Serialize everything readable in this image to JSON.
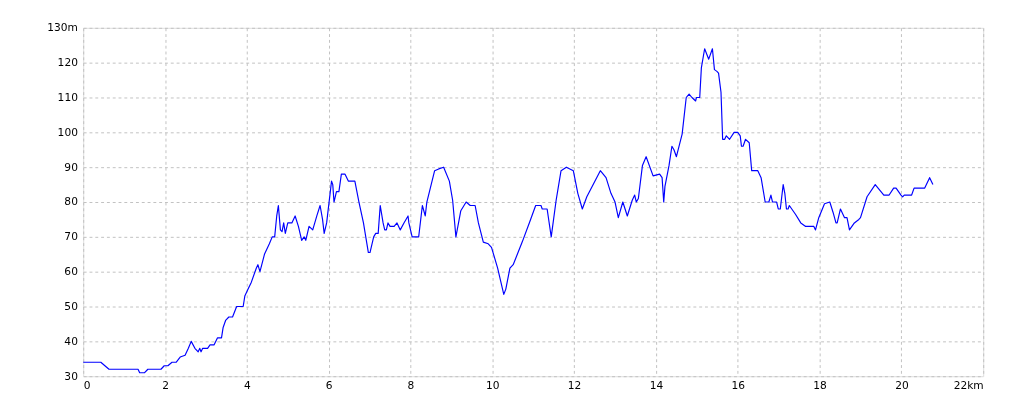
{
  "chart_data": {
    "type": "line",
    "x": [
      0,
      0.43,
      0.63,
      1.34,
      1.38,
      1.5,
      1.58,
      1.9,
      1.98,
      2.07,
      2.17,
      2.27,
      2.37,
      2.49,
      2.57,
      2.64,
      2.73,
      2.81,
      2.85,
      2.88,
      2.92,
      3.04,
      3.1,
      3.2,
      3.28,
      3.38,
      3.42,
      3.48,
      3.56,
      3.65,
      3.75,
      3.91,
      3.95,
      4.03,
      4.11,
      4.23,
      4.27,
      4.32,
      4.43,
      4.55,
      4.62,
      4.68,
      4.73,
      4.77,
      4.82,
      4.86,
      4.9,
      4.94,
      5.0,
      5.1,
      5.18,
      5.26,
      5.34,
      5.4,
      5.44,
      5.52,
      5.61,
      5.71,
      5.79,
      5.85,
      5.89,
      5.95,
      6.05,
      6.07,
      6.1,
      6.13,
      6.19,
      6.25,
      6.31,
      6.4,
      6.48,
      6.64,
      6.74,
      6.85,
      6.97,
      7.01,
      7.1,
      7.15,
      7.21,
      7.26,
      7.33,
      7.37,
      7.41,
      7.45,
      7.5,
      7.6,
      7.67,
      7.75,
      7.84,
      7.94,
      7.96,
      8.04,
      8.2,
      8.26,
      8.29,
      8.36,
      8.4,
      8.59,
      8.69,
      8.81,
      8.95,
      9.03,
      9.11,
      9.23,
      9.36,
      9.46,
      9.58,
      9.66,
      9.78,
      9.9,
      9.98,
      10.13,
      10.21,
      10.28,
      10.33,
      10.43,
      10.51,
      10.73,
      10.92,
      11.06,
      11.19,
      11.22,
      11.34,
      11.44,
      11.56,
      11.68,
      11.81,
      11.98,
      12.09,
      12.2,
      12.31,
      12.64,
      12.78,
      12.9,
      13.0,
      13.08,
      13.19,
      13.3,
      13.42,
      13.48,
      13.52,
      13.57,
      13.67,
      13.76,
      13.93,
      14.09,
      14.15,
      14.19,
      14.22,
      14.32,
      14.39,
      14.44,
      14.5,
      14.64,
      14.74,
      14.81,
      14.88,
      14.97,
      14.99,
      15.07,
      15.11,
      15.19,
      15.29,
      15.38,
      15.43,
      15.49,
      15.53,
      15.59,
      15.63,
      15.68,
      15.72,
      15.8,
      15.91,
      16.0,
      16.06,
      16.09,
      16.13,
      16.19,
      16.28,
      16.34,
      16.49,
      16.57,
      16.67,
      16.76,
      16.81,
      16.85,
      16.95,
      16.99,
      17.04,
      17.11,
      17.15,
      17.19,
      17.23,
      17.26,
      17.41,
      17.54,
      17.66,
      17.86,
      17.9,
      17.98,
      18.12,
      18.25,
      18.33,
      18.4,
      18.43,
      18.51,
      18.61,
      18.67,
      18.73,
      18.85,
      18.96,
      19.0,
      19.16,
      19.36,
      19.57,
      19.7,
      19.81,
      19.87,
      19.99,
      20.03,
      20.07,
      20.15,
      20.25,
      20.31,
      20.57,
      20.69,
      20.77
    ],
    "series": [
      {
        "color": "#0000ff",
        "values": [
          34,
          34,
          32,
          32,
          31,
          31,
          32,
          32,
          33,
          33,
          34,
          34,
          35.5,
          36,
          38,
          40,
          38,
          37,
          38,
          37,
          38,
          38,
          39,
          39,
          41,
          41,
          44,
          46,
          47,
          47,
          50,
          50,
          53,
          55,
          57,
          61,
          62,
          60,
          65,
          68,
          70,
          70,
          76,
          79,
          72,
          71.5,
          74,
          71,
          74,
          74,
          76,
          73,
          69,
          70,
          69,
          73,
          72,
          76,
          79,
          75,
          71,
          74,
          84,
          86,
          85,
          80,
          83,
          83,
          88,
          88,
          86,
          86,
          80,
          74,
          65.5,
          65.5,
          70,
          71,
          71,
          79,
          74,
          72,
          72,
          74,
          73,
          73,
          74,
          72,
          74,
          76,
          74,
          70,
          70,
          76,
          79,
          76,
          80,
          89,
          89.5,
          90,
          86,
          80.5,
          70,
          77.5,
          80,
          79,
          79,
          74,
          68.5,
          68,
          67,
          61,
          57,
          53.5,
          55,
          61,
          62,
          68.5,
          74.5,
          79,
          79,
          78,
          78,
          70,
          80.5,
          89,
          90,
          89,
          82.5,
          78,
          81.5,
          89,
          87,
          82.5,
          80,
          75.5,
          80,
          76,
          80.5,
          82,
          80,
          81,
          90.5,
          93,
          87.5,
          88,
          87,
          80,
          84.5,
          90.5,
          96,
          95,
          93,
          99.5,
          110,
          111,
          110,
          109,
          110,
          110,
          118.5,
          124,
          121,
          124,
          118,
          117.5,
          117,
          111.5,
          98,
          98,
          99,
          98,
          100,
          100,
          99,
          96,
          96,
          98,
          97,
          89,
          89,
          87,
          80,
          80,
          82,
          80,
          80,
          78,
          78,
          85,
          82.5,
          78,
          78,
          79,
          76.5,
          74,
          73,
          73,
          72,
          75.5,
          79.5,
          80,
          77,
          74,
          74,
          78,
          75.5,
          75.5,
          72,
          74,
          75,
          75.5,
          81.5,
          85,
          82,
          82,
          84,
          84,
          82,
          81.5,
          82,
          82,
          82,
          84,
          84,
          87,
          85
        ]
      }
    ],
    "xlim": [
      0,
      22
    ],
    "xticks": [
      0,
      2,
      4,
      6,
      8,
      10,
      12,
      14,
      16,
      18,
      20,
      {
        "value": 22,
        "label": "22km"
      }
    ],
    "ylim": [
      30,
      130
    ],
    "yticks": [
      30,
      40,
      50,
      60,
      70,
      80,
      90,
      100,
      110,
      120,
      {
        "value": 130,
        "label": "130m"
      }
    ],
    "grid": true,
    "legend": false,
    "marker": "none",
    "line_style": "solid"
  }
}
